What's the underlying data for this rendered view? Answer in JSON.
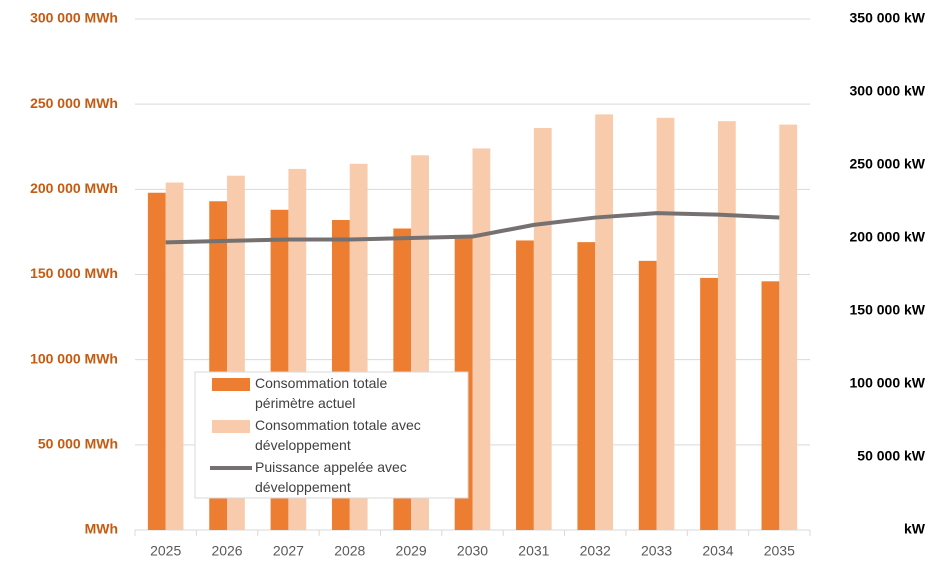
{
  "chart_data": {
    "type": "bar",
    "categories": [
      "2025",
      "2026",
      "2027",
      "2028",
      "2029",
      "2030",
      "2031",
      "2032",
      "2033",
      "2034",
      "2035"
    ],
    "series": [
      {
        "name": "Consommation totale périmètre actuel",
        "color": "#ed7d31",
        "values": [
          198000,
          193000,
          188000,
          182000,
          177000,
          173000,
          170000,
          169000,
          158000,
          148000,
          146000
        ]
      },
      {
        "name": "Consommation totale avec développement",
        "color": "#f8cbad",
        "values": [
          204000,
          208000,
          212000,
          215000,
          220000,
          224000,
          236000,
          244000,
          242000,
          240000,
          238000
        ]
      },
      {
        "name": "Puissance appelée avec développement",
        "color": "#767171",
        "type": "line",
        "axis": "y2",
        "values": [
          197000,
          198000,
          199000,
          199000,
          200000,
          201000,
          209000,
          214000,
          217000,
          216000,
          214000
        ]
      }
    ],
    "ylim": [
      0,
      300000
    ],
    "yticks": [
      {
        "value": 0,
        "label": "MWh"
      },
      {
        "value": 50000,
        "label": "50 000 MWh"
      },
      {
        "value": 100000,
        "label": "100 000 MWh"
      },
      {
        "value": 150000,
        "label": "150 000 MWh"
      },
      {
        "value": 200000,
        "label": "200 000 MWh"
      },
      {
        "value": 250000,
        "label": "250 000 MWh"
      },
      {
        "value": 300000,
        "label": "300 000 MWh"
      }
    ],
    "y2lim": [
      0,
      350000
    ],
    "y2ticks": [
      {
        "value": 0,
        "label": "kW"
      },
      {
        "value": 50000,
        "label": "50 000 kW"
      },
      {
        "value": 100000,
        "label": "100 000 kW"
      },
      {
        "value": 150000,
        "label": "150 000 kW"
      },
      {
        "value": 200000,
        "label": "200 000 kW"
      },
      {
        "value": 250000,
        "label": "250 000 kW"
      },
      {
        "value": 300000,
        "label": "300 000 kW"
      },
      {
        "value": 350000,
        "label": "350 000 kW"
      }
    ],
    "grid": true
  }
}
